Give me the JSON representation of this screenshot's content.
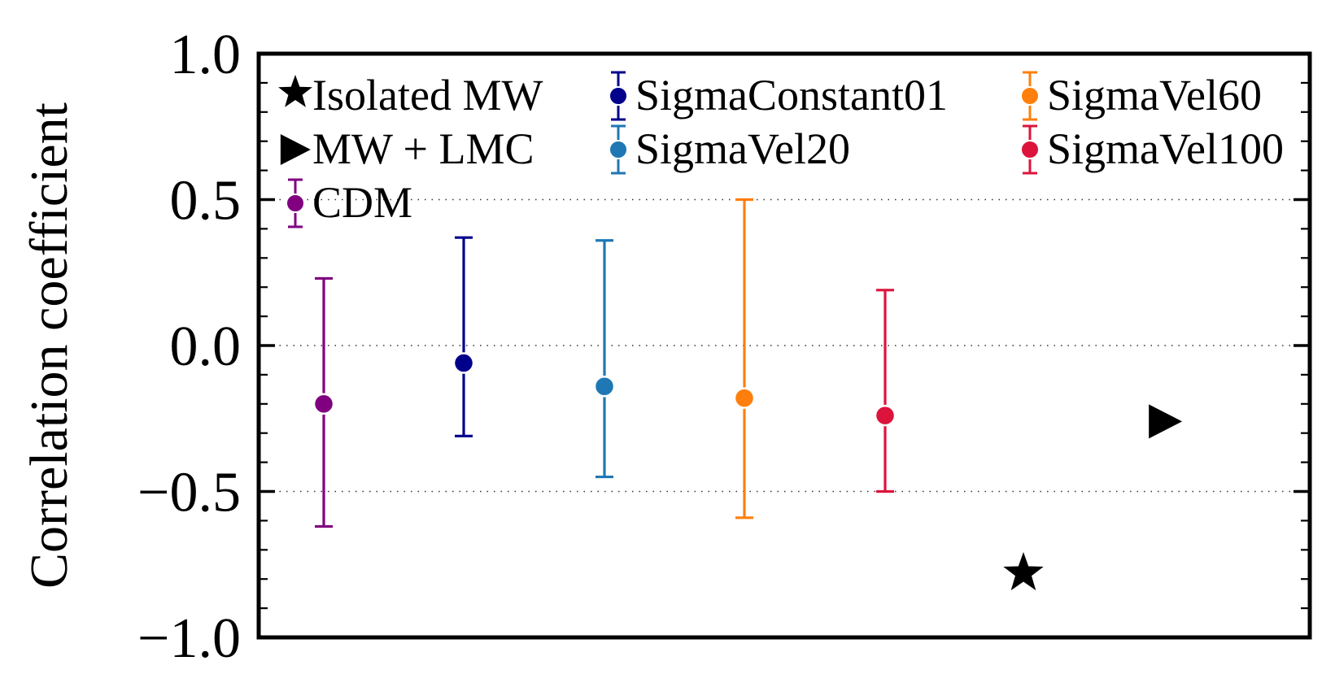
{
  "chart_data": {
    "type": "scatter",
    "ylabel": "Correlation coefficient",
    "xlabel": "",
    "ylim": [
      -1.0,
      1.0
    ],
    "yticks": [
      {
        "value": -1.0,
        "label": "−1.0"
      },
      {
        "value": -0.5,
        "label": "−0.5"
      },
      {
        "value": 0.0,
        "label": "0.0"
      },
      {
        "value": 0.5,
        "label": "0.5"
      },
      {
        "value": 1.0,
        "label": "1.0"
      }
    ],
    "gridlines_y": [
      -0.5,
      0.0,
      0.5
    ],
    "grid_style": "dotted",
    "legend_position": "top",
    "series": [
      {
        "name": "CDM",
        "marker": "circle-errorbar",
        "color": "#800080",
        "y": -0.2,
        "err_low": -0.62,
        "err_high": 0.23
      },
      {
        "name": "SigmaConstant01",
        "marker": "circle-errorbar",
        "color": "#00008b",
        "y": -0.06,
        "err_low": -0.31,
        "err_high": 0.37
      },
      {
        "name": "SigmaVel20",
        "marker": "circle-errorbar",
        "color": "#1f77b4",
        "y": -0.14,
        "err_low": -0.45,
        "err_high": 0.36
      },
      {
        "name": "SigmaVel60",
        "marker": "circle-errorbar",
        "color": "#ff7f0e",
        "y": -0.18,
        "err_low": -0.59,
        "err_high": 0.5
      },
      {
        "name": "SigmaVel100",
        "marker": "circle-errorbar",
        "color": "#dc143c",
        "y": -0.24,
        "err_low": -0.5,
        "err_high": 0.19
      },
      {
        "name": "Isolated MW",
        "marker": "star",
        "color": "#000000",
        "y": -0.78
      },
      {
        "name": "MW + LMC",
        "marker": "triangle-right",
        "color": "#000000",
        "y": -0.26
      }
    ],
    "legend_order": [
      "Isolated MW",
      "MW + LMC",
      "CDM",
      "SigmaConstant01",
      "SigmaVel20",
      "SigmaVel60",
      "SigmaVel100"
    ]
  }
}
